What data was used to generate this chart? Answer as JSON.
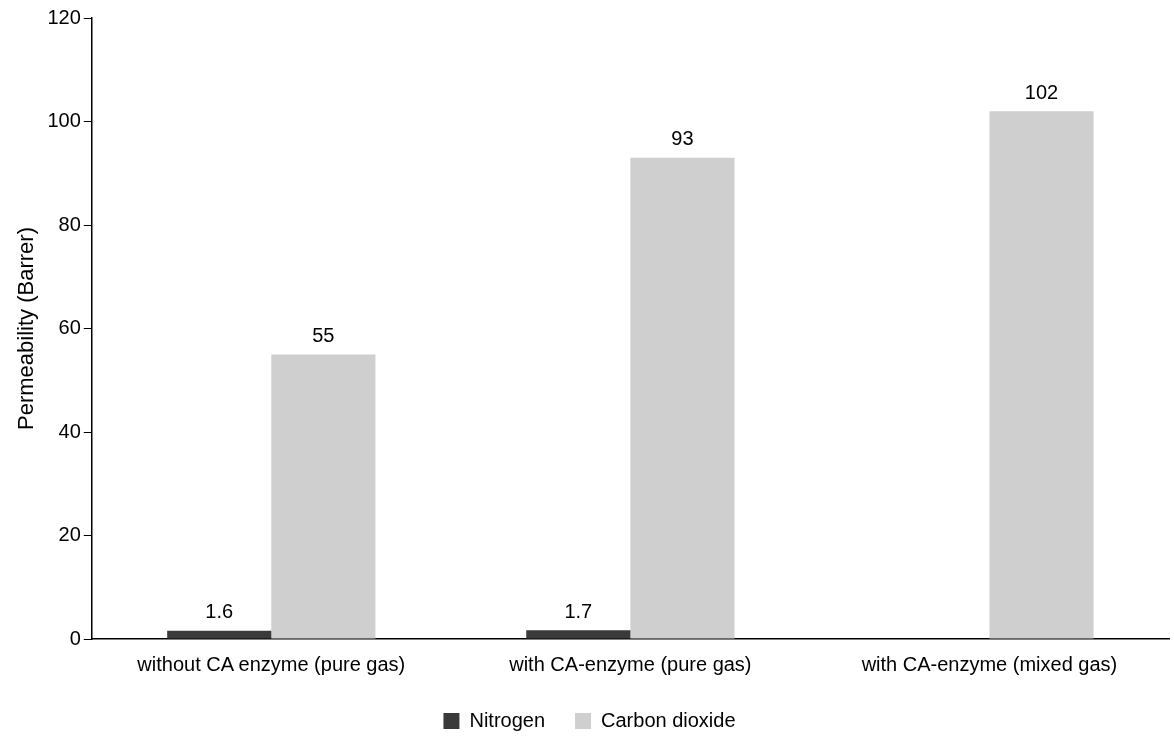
{
  "chart_data": {
    "type": "bar",
    "ylabel": "Permeability (Barrer)",
    "categories": [
      "without CA enzyme (pure gas)",
      "with CA-enzyme (pure gas)",
      "with CA-enzyme (mixed gas)"
    ],
    "series": [
      {
        "name": "Nitrogen",
        "color": "#3a3a3a",
        "values": [
          1.6,
          1.7,
          null
        ]
      },
      {
        "name": "Carbon dioxide",
        "color": "#cfcfcf",
        "values": [
          55,
          93,
          102
        ]
      }
    ],
    "ylim": [
      0,
      120
    ],
    "yticks": [
      0,
      20,
      40,
      60,
      80,
      100,
      120
    ],
    "data_labels": true,
    "grid": false,
    "legend": "bottom"
  }
}
